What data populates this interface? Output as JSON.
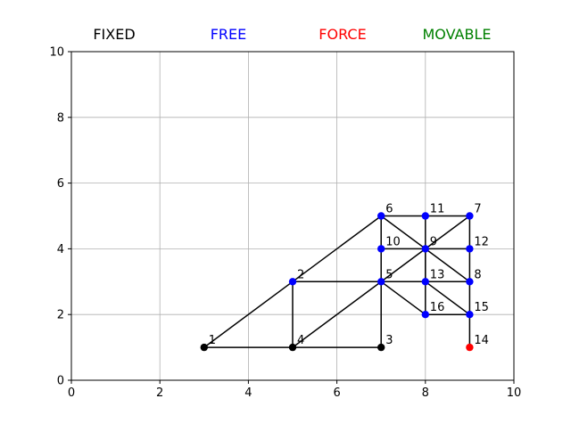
{
  "chart_data": {
    "type": "scatter",
    "title": "",
    "xlabel": "",
    "ylabel": "",
    "xlim": [
      0,
      10
    ],
    "ylim": [
      0,
      10
    ],
    "grid": true,
    "x_ticks": [
      0,
      2,
      4,
      6,
      8,
      10
    ],
    "y_ticks": [
      0,
      2,
      4,
      6,
      8,
      10
    ],
    "legend": [
      {
        "label": "FIXED",
        "color": "#000000"
      },
      {
        "label": "FREE",
        "color": "#0000ff"
      },
      {
        "label": "FORCE",
        "color": "#ff0000"
      },
      {
        "label": "MOVABLE",
        "color": "#008000"
      }
    ],
    "nodes": [
      {
        "id": "1",
        "x": 3,
        "y": 1,
        "type": "FIXED"
      },
      {
        "id": "2",
        "x": 5,
        "y": 3,
        "type": "FREE"
      },
      {
        "id": "3",
        "x": 7,
        "y": 1,
        "type": "FIXED"
      },
      {
        "id": "4",
        "x": 5,
        "y": 1,
        "type": "FIXED"
      },
      {
        "id": "5",
        "x": 7,
        "y": 3,
        "type": "FREE"
      },
      {
        "id": "6",
        "x": 7,
        "y": 5,
        "type": "FREE"
      },
      {
        "id": "7",
        "x": 9,
        "y": 5,
        "type": "FREE"
      },
      {
        "id": "8",
        "x": 9,
        "y": 3,
        "type": "FREE"
      },
      {
        "id": "9",
        "x": 8,
        "y": 4,
        "type": "FREE"
      },
      {
        "id": "10",
        "x": 7,
        "y": 4,
        "type": "FREE"
      },
      {
        "id": "11",
        "x": 8,
        "y": 5,
        "type": "FREE"
      },
      {
        "id": "12",
        "x": 9,
        "y": 4,
        "type": "FREE"
      },
      {
        "id": "13",
        "x": 8,
        "y": 3,
        "type": "FREE"
      },
      {
        "id": "14",
        "x": 9,
        "y": 1,
        "type": "FORCE"
      },
      {
        "id": "15",
        "x": 9,
        "y": 2,
        "type": "FREE"
      },
      {
        "id": "16",
        "x": 8,
        "y": 2,
        "type": "FREE"
      }
    ],
    "edges": [
      [
        "1",
        "4"
      ],
      [
        "4",
        "3"
      ],
      [
        "1",
        "6"
      ],
      [
        "2",
        "4"
      ],
      [
        "2",
        "5"
      ],
      [
        "4",
        "9"
      ],
      [
        "3",
        "5"
      ],
      [
        "5",
        "6"
      ],
      [
        "5",
        "16"
      ],
      [
        "6",
        "11"
      ],
      [
        "11",
        "7"
      ],
      [
        "6",
        "8"
      ],
      [
        "10",
        "9"
      ],
      [
        "9",
        "12"
      ],
      [
        "11",
        "13"
      ],
      [
        "7",
        "14"
      ],
      [
        "5",
        "8"
      ],
      [
        "9",
        "16"
      ],
      [
        "7",
        "9"
      ],
      [
        "13",
        "15"
      ],
      [
        "16",
        "15"
      ]
    ]
  }
}
